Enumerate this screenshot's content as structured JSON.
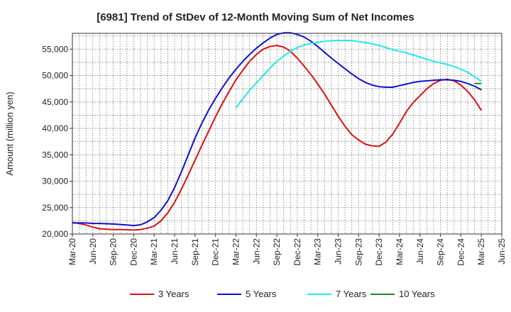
{
  "chart_data": {
    "type": "line",
    "title": "[6981]  Trend of StDev of 12-Month Moving Sum of Net Incomes",
    "xlabel": "",
    "ylabel": "Amount (million yen)",
    "ylim": [
      20000,
      58000
    ],
    "y_ticks": [
      "20,000",
      "25,000",
      "30,000",
      "35,000",
      "40,000",
      "45,000",
      "50,000",
      "55,000"
    ],
    "y_tick_values": [
      20000,
      25000,
      30000,
      35000,
      40000,
      45000,
      50000,
      55000
    ],
    "x_ticks": [
      "Mar-20",
      "Jun-20",
      "Sep-20",
      "Dec-20",
      "Mar-21",
      "Jun-21",
      "Sep-21",
      "Dec-21",
      "Mar-22",
      "Jun-22",
      "Sep-22",
      "Dec-22",
      "Mar-23",
      "Jun-23",
      "Sep-23",
      "Dec-23",
      "Mar-24",
      "Jun-24",
      "Sep-24",
      "Dec-24",
      "Mar-25",
      "Jun-25"
    ],
    "x": [
      "Mar-20",
      "Apr-20",
      "May-20",
      "Jun-20",
      "Jul-20",
      "Aug-20",
      "Sep-20",
      "Oct-20",
      "Nov-20",
      "Dec-20",
      "Jan-21",
      "Feb-21",
      "Mar-21",
      "Apr-21",
      "May-21",
      "Jun-21",
      "Jul-21",
      "Aug-21",
      "Sep-21",
      "Oct-21",
      "Nov-21",
      "Dec-21",
      "Jan-22",
      "Feb-22",
      "Mar-22",
      "Apr-22",
      "May-22",
      "Jun-22",
      "Jul-22",
      "Aug-22",
      "Sep-22",
      "Oct-22",
      "Nov-22",
      "Dec-22",
      "Jan-23",
      "Feb-23",
      "Mar-23",
      "Apr-23",
      "May-23",
      "Jun-23",
      "Jul-23",
      "Aug-23",
      "Sep-23",
      "Oct-23",
      "Nov-23",
      "Dec-23",
      "Jan-24",
      "Feb-24",
      "Mar-24",
      "Apr-24",
      "May-24",
      "Jun-24",
      "Jul-24",
      "Aug-24",
      "Sep-24",
      "Oct-24",
      "Nov-24",
      "Dec-24",
      "Jan-25",
      "Feb-25",
      "Mar-25"
    ],
    "grid": true,
    "legend_position": "bottom",
    "series": [
      {
        "name": "3 Years",
        "color": "#dd1111",
        "values": [
          22200,
          22000,
          21700,
          21300,
          21000,
          20900,
          20850,
          20850,
          20800,
          20750,
          20850,
          21100,
          21500,
          22500,
          24000,
          26000,
          28500,
          31200,
          34000,
          36800,
          39500,
          42200,
          44700,
          47000,
          49200,
          51000,
          52700,
          54000,
          55000,
          55500,
          55700,
          55400,
          54600,
          53300,
          51800,
          50200,
          48400,
          46500,
          44400,
          42300,
          40400,
          38800,
          37800,
          37000,
          36700,
          36600,
          37400,
          38900,
          41000,
          43200,
          44900,
          46200,
          47500,
          48500,
          49100,
          49300,
          49000,
          48200,
          47000,
          45400,
          43400
        ]
      },
      {
        "name": "5 Years",
        "color": "#1010cc",
        "values": [
          22100,
          22100,
          22100,
          22000,
          22000,
          21950,
          21900,
          21800,
          21700,
          21600,
          21750,
          22300,
          23100,
          24500,
          26300,
          28800,
          31800,
          35000,
          38200,
          41000,
          43500,
          45700,
          47700,
          49600,
          51200,
          52700,
          54000,
          55200,
          56200,
          57100,
          57800,
          58100,
          58100,
          57800,
          57300,
          56500,
          55500,
          54400,
          53300,
          52300,
          51300,
          50300,
          49400,
          48700,
          48200,
          47900,
          47800,
          47800,
          48100,
          48400,
          48700,
          48900,
          49000,
          49100,
          49200,
          49200,
          49100,
          48900,
          48500,
          48000,
          47300
        ]
      },
      {
        "name": "7 Years",
        "color": "#22e8e8",
        "values": [
          null,
          null,
          null,
          null,
          null,
          null,
          null,
          null,
          null,
          null,
          null,
          null,
          null,
          null,
          null,
          null,
          null,
          null,
          null,
          null,
          null,
          null,
          null,
          null,
          43900,
          45600,
          47200,
          48600,
          50000,
          51400,
          52700,
          53700,
          54600,
          55300,
          55800,
          56100,
          56300,
          56500,
          56600,
          56650,
          56650,
          56600,
          56450,
          56250,
          56000,
          55700,
          55300,
          54900,
          54600,
          54300,
          53900,
          53500,
          53100,
          52700,
          52400,
          52100,
          51700,
          51200,
          50600,
          49800,
          48900
        ]
      },
      {
        "name": "10 Years",
        "color": "#228822",
        "values": [
          null,
          null,
          null,
          null,
          null,
          null,
          null,
          null,
          null,
          null,
          null,
          null,
          null,
          null,
          null,
          null,
          null,
          null,
          null,
          null,
          null,
          null,
          null,
          null,
          null,
          null,
          null,
          null,
          null,
          null,
          null,
          null,
          null,
          null,
          null,
          null,
          null,
          null,
          null,
          null,
          null,
          null,
          null,
          null,
          null,
          null,
          null,
          null,
          null,
          null,
          null,
          null,
          null,
          null,
          null,
          null,
          null,
          null,
          null,
          48500,
          48500
        ]
      }
    ]
  }
}
